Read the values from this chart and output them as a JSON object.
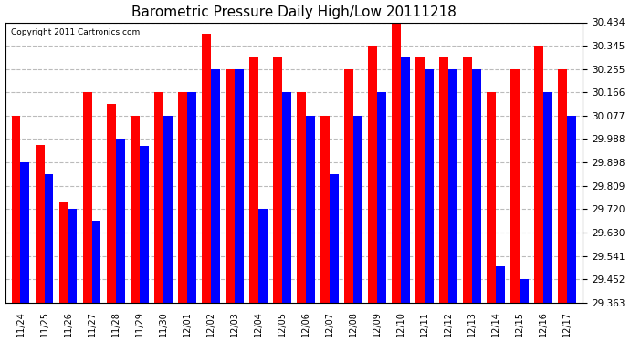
{
  "title": "Barometric Pressure Daily High/Low 20111218",
  "copyright": "Copyright 2011 Cartronics.com",
  "dates": [
    "11/24",
    "11/25",
    "11/26",
    "11/27",
    "11/28",
    "11/29",
    "11/30",
    "12/01",
    "12/02",
    "12/03",
    "12/04",
    "12/05",
    "12/06",
    "12/07",
    "12/08",
    "12/09",
    "12/10",
    "12/11",
    "12/12",
    "12/13",
    "12/14",
    "12/15",
    "12/16",
    "12/17"
  ],
  "highs": [
    30.077,
    29.966,
    29.75,
    30.166,
    30.122,
    30.077,
    30.166,
    30.166,
    30.39,
    30.255,
    30.3,
    30.3,
    30.166,
    30.077,
    30.255,
    30.345,
    30.434,
    30.3,
    30.3,
    30.3,
    30.166,
    30.255,
    30.345,
    30.255
  ],
  "lows": [
    29.898,
    29.854,
    29.72,
    29.675,
    29.988,
    29.96,
    30.077,
    30.166,
    30.255,
    30.255,
    29.72,
    30.166,
    30.077,
    29.854,
    30.077,
    30.166,
    30.3,
    30.255,
    30.255,
    30.255,
    29.5,
    29.452,
    30.166,
    30.077
  ],
  "high_color": "#FF0000",
  "low_color": "#0000FF",
  "background_color": "#FFFFFF",
  "grid_color": "#BBBBBB",
  "title_fontsize": 11,
  "ylim_min": 29.363,
  "ylim_max": 30.434,
  "yticks": [
    30.434,
    30.345,
    30.255,
    30.166,
    30.077,
    29.988,
    29.898,
    29.809,
    29.72,
    29.63,
    29.541,
    29.452,
    29.363
  ]
}
